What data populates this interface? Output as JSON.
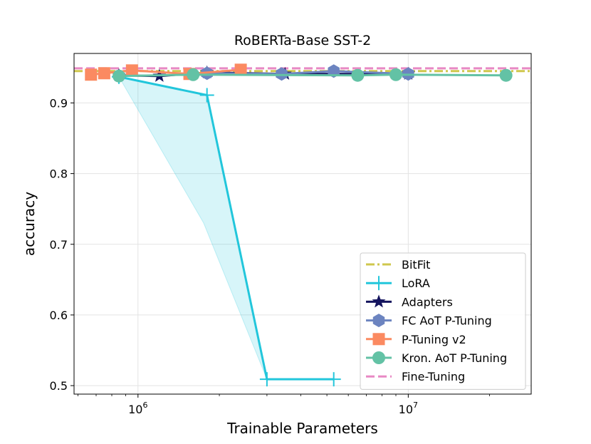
{
  "chart_data": {
    "type": "line",
    "title": "RoBERTa-Base SST-2",
    "xlabel": "Trainable Parameters",
    "ylabel": "accuracy",
    "xscale": "log",
    "xlim": [
      580000,
      28500000
    ],
    "ylim": [
      0.488,
      0.97
    ],
    "xticks": [
      {
        "value": 1000000,
        "label": "10",
        "exp": "6"
      },
      {
        "value": 10000000,
        "label": "10",
        "exp": "7"
      }
    ],
    "yticks": [
      {
        "value": 0.5,
        "label": "0.5"
      },
      {
        "value": 0.6,
        "label": "0.6"
      },
      {
        "value": 0.7,
        "label": "0.7"
      },
      {
        "value": 0.8,
        "label": "0.8"
      },
      {
        "value": 0.9,
        "label": "0.9"
      }
    ],
    "grid": true,
    "legend_position": "bottom-right",
    "series": [
      {
        "name": "BitFit",
        "kind": "hline",
        "y": 0.945,
        "color": "#cfc74d",
        "dash": "dashdot"
      },
      {
        "name": "Fine-Tuning",
        "kind": "hline",
        "y": 0.949,
        "color": "#e889c4",
        "dash": "dashed"
      },
      {
        "name": "LoRA",
        "kind": "line",
        "marker": "plus",
        "color": "#22c6db",
        "points": [
          [
            850000,
            0.937
          ],
          [
            1800000,
            0.911
          ],
          [
            3000000,
            0.509
          ],
          [
            5300000,
            0.509
          ]
        ],
        "band_upper": [
          [
            850000,
            0.937
          ],
          [
            1800000,
            0.911
          ],
          [
            3000000,
            0.509
          ],
          [
            5300000,
            0.509
          ]
        ],
        "band_lower": [
          [
            850000,
            0.937
          ],
          [
            1750000,
            0.73
          ],
          [
            3000000,
            0.509
          ],
          [
            5300000,
            0.509
          ]
        ]
      },
      {
        "name": "Adapters",
        "kind": "line",
        "marker": "star",
        "color": "#14145e",
        "points": [
          [
            850000,
            0.939
          ],
          [
            1200000,
            0.938
          ],
          [
            1800000,
            0.943
          ],
          [
            3500000,
            0.941
          ],
          [
            10000000,
            0.941
          ]
        ]
      },
      {
        "name": "FC AoT P-Tuning",
        "kind": "line",
        "marker": "hexagon",
        "color": "#6c84c0",
        "points": [
          [
            1800000,
            0.942
          ],
          [
            3400000,
            0.941
          ],
          [
            5300000,
            0.945
          ],
          [
            10000000,
            0.941
          ]
        ]
      },
      {
        "name": "P-Tuning v2",
        "kind": "line",
        "marker": "square",
        "color": "#fb8a61",
        "points": [
          [
            670000,
            0.94
          ],
          [
            750000,
            0.942
          ],
          [
            950000,
            0.946
          ],
          [
            1550000,
            0.941
          ],
          [
            2400000,
            0.947
          ]
        ]
      },
      {
        "name": "Kron. AoT P-Tuning",
        "kind": "line",
        "marker": "circle",
        "color": "#63c2a5",
        "points": [
          [
            850000,
            0.938
          ],
          [
            1600000,
            0.94
          ],
          [
            6500000,
            0.939
          ],
          [
            9000000,
            0.94
          ],
          [
            23000000,
            0.939
          ]
        ]
      }
    ],
    "legend_order": [
      "BitFit",
      "LoRA",
      "Adapters",
      "FC AoT P-Tuning",
      "P-Tuning v2",
      "Kron. AoT P-Tuning",
      "Fine-Tuning"
    ]
  }
}
